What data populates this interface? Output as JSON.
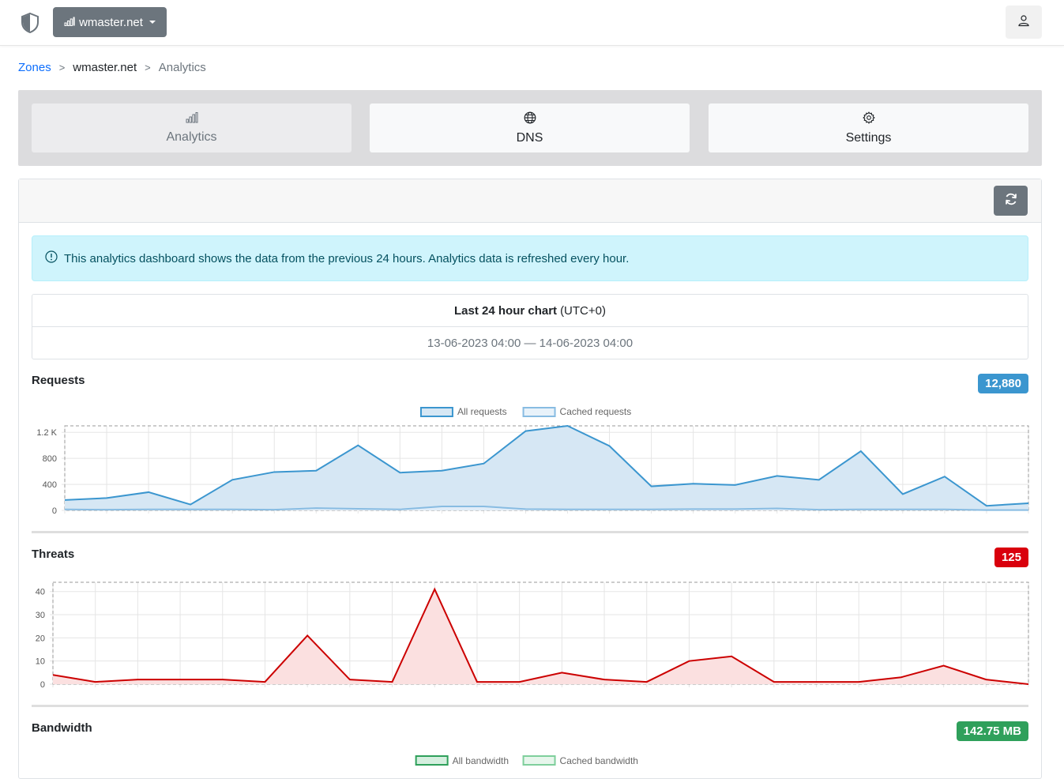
{
  "navbar": {
    "zone_selector_label": "wmaster.net"
  },
  "breadcrumb": {
    "zones": "Zones",
    "zone": "wmaster.net",
    "current": "Analytics",
    "separator": ">"
  },
  "tabs": [
    {
      "label": "Analytics",
      "icon": "bar-chart-icon",
      "active": true
    },
    {
      "label": "DNS",
      "icon": "globe-icon",
      "active": false
    },
    {
      "label": "Settings",
      "icon": "gear-icon",
      "active": false
    }
  ],
  "alert": {
    "text": "This analytics dashboard shows the data from the previous 24 hours. Analytics data is refreshed every hour."
  },
  "range": {
    "title": "Last 24 hour chart",
    "timezone": "(UTC+0)",
    "dates": "13-06-2023 04:00 — 14-06-2023 04:00"
  },
  "sections": {
    "requests": {
      "title": "Requests",
      "total": "12,880",
      "color": "#3b96cf"
    },
    "threats": {
      "title": "Threats",
      "total": "125",
      "color": "#d9000d"
    },
    "bandwidth": {
      "title": "Bandwidth",
      "total": "142.75 MB",
      "color": "#2fa05b"
    }
  },
  "colors": {
    "requests_line": "#3b96cf",
    "requests_fill": "#d6e7f4",
    "cached_line": "#88bce2",
    "threats_line": "#cc0000",
    "threats_fill": "#fbe0e0",
    "bandwidth_line": "#2fa05b",
    "bandwidth_fill": "#d5efdf"
  },
  "chart_data": [
    {
      "type": "area",
      "title": "Requests",
      "legend": [
        "All requests",
        "Cached requests"
      ],
      "legend_position": "top",
      "y_tick_labels": [
        "0",
        "400",
        "800",
        "1.2 K"
      ],
      "ylim": [
        0,
        1300
      ],
      "grid": true,
      "series": [
        {
          "name": "All requests",
          "values": [
            160,
            190,
            280,
            90,
            470,
            590,
            610,
            1000,
            580,
            610,
            720,
            1220,
            1300,
            990,
            370,
            410,
            390,
            530,
            470,
            910,
            250,
            520,
            70,
            110
          ]
        },
        {
          "name": "Cached requests",
          "values": [
            15,
            10,
            15,
            15,
            15,
            10,
            35,
            25,
            15,
            60,
            60,
            20,
            15,
            15,
            15,
            20,
            20,
            30,
            10,
            15,
            15,
            15,
            5,
            5
          ]
        }
      ]
    },
    {
      "type": "area",
      "title": "Threats",
      "y_tick_labels": [
        "0",
        "10",
        "20",
        "30",
        "40"
      ],
      "ylim": [
        0,
        44
      ],
      "grid": true,
      "series": [
        {
          "values": [
            4,
            1,
            2,
            2,
            2,
            1,
            21,
            2,
            1,
            41,
            1,
            1,
            5,
            2,
            1,
            10,
            12,
            1,
            1,
            1,
            3,
            8,
            2,
            0
          ]
        }
      ]
    },
    {
      "type": "area",
      "title": "Bandwidth",
      "legend": [
        "All bandwidth",
        "Cached bandwidth"
      ],
      "legend_position": "top"
    }
  ]
}
